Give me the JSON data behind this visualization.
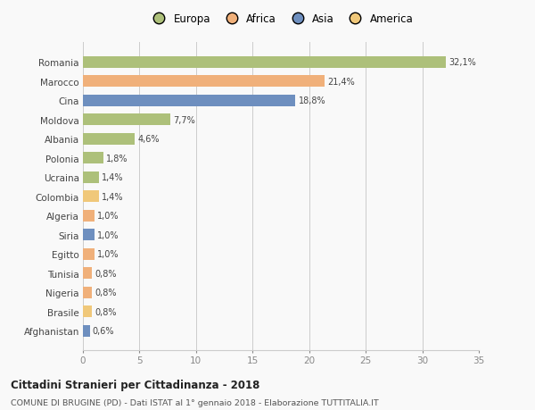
{
  "categories": [
    "Romania",
    "Marocco",
    "Cina",
    "Moldova",
    "Albania",
    "Polonia",
    "Ucraina",
    "Colombia",
    "Algeria",
    "Siria",
    "Egitto",
    "Tunisia",
    "Nigeria",
    "Brasile",
    "Afghanistan"
  ],
  "values": [
    32.1,
    21.4,
    18.8,
    7.7,
    4.6,
    1.8,
    1.4,
    1.4,
    1.0,
    1.0,
    1.0,
    0.8,
    0.8,
    0.8,
    0.6
  ],
  "labels": [
    "32,1%",
    "21,4%",
    "18,8%",
    "7,7%",
    "4,6%",
    "1,8%",
    "1,4%",
    "1,4%",
    "1,0%",
    "1,0%",
    "1,0%",
    "0,8%",
    "0,8%",
    "0,8%",
    "0,6%"
  ],
  "colors": [
    "#adc07a",
    "#f0b07a",
    "#6e8fbf",
    "#adc07a",
    "#adc07a",
    "#adc07a",
    "#adc07a",
    "#f0c87a",
    "#f0b07a",
    "#6e8fbf",
    "#f0b07a",
    "#f0b07a",
    "#f0b07a",
    "#f0c87a",
    "#6e8fbf"
  ],
  "legend": [
    {
      "label": "Europa",
      "color": "#adc07a"
    },
    {
      "label": "Africa",
      "color": "#f0b07a"
    },
    {
      "label": "Asia",
      "color": "#6e8fbf"
    },
    {
      "label": "America",
      "color": "#f0c87a"
    }
  ],
  "xlim": [
    0,
    35
  ],
  "xticks": [
    0,
    5,
    10,
    15,
    20,
    25,
    30,
    35
  ],
  "title": "Cittadini Stranieri per Cittadinanza - 2018",
  "subtitle": "COMUNE DI BRUGINE (PD) - Dati ISTAT al 1° gennaio 2018 - Elaborazione TUTTITALIA.IT",
  "background_color": "#f9f9f9",
  "grid_color": "#cccccc"
}
